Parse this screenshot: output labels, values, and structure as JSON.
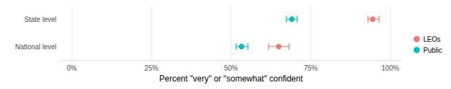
{
  "chart_data": {
    "type": "scatter",
    "orientation": "horizontal",
    "x_label": "Percent \"very\" or \"somewhat\" confident",
    "categories": [
      "State level",
      "National level"
    ],
    "series": [
      {
        "name": "LEOs",
        "color": "#F8766D",
        "values": [
          94.5,
          65
        ],
        "error_low": [
          93,
          61.8
        ],
        "error_high": [
          96.5,
          68.2
        ]
      },
      {
        "name": "Public",
        "color": "#00BFC4",
        "values": [
          69.1,
          53.3
        ],
        "error_low": [
          67.4,
          51.6
        ],
        "error_high": [
          70.8,
          55.3
        ]
      }
    ],
    "xlim": [
      -3.5,
      103.5
    ],
    "xticks": [
      {
        "value": 0,
        "label": "0%"
      },
      {
        "value": 25,
        "label": "25%"
      },
      {
        "value": 50,
        "label": "50%"
      },
      {
        "value": 75,
        "label": "75%"
      },
      {
        "value": 100,
        "label": "100%"
      }
    ],
    "grid": true,
    "legend": "right"
  }
}
